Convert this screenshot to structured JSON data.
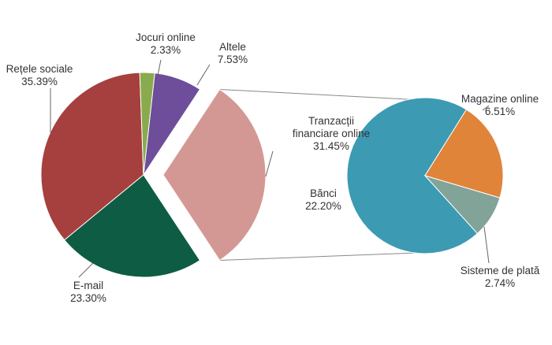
{
  "chart_data": [
    {
      "type": "pie",
      "categories": [
        "Jocuri online",
        "Altele",
        "Tranzacții financiare online",
        "E-mail",
        "Rețele sociale"
      ],
      "values": [
        2.33,
        7.53,
        31.45,
        23.3,
        35.39
      ],
      "value_labels": [
        "2.33%",
        "7.53%",
        "31.45%",
        "23.30%",
        "35.39%"
      ],
      "colors": [
        "#8aab4d",
        "#6e4d9a",
        "#d49894",
        "#0e5c44",
        "#a5403e"
      ],
      "exploded": 2
    },
    {
      "type": "pie",
      "categories": [
        "Magazine online",
        "Sisteme de plată",
        "Bănci"
      ],
      "values": [
        6.51,
        2.74,
        22.2
      ],
      "value_labels": [
        "6.51%",
        "2.74%",
        "22.20%"
      ],
      "colors": [
        "#e0843a",
        "#82a398",
        "#3c9ab3"
      ]
    }
  ]
}
